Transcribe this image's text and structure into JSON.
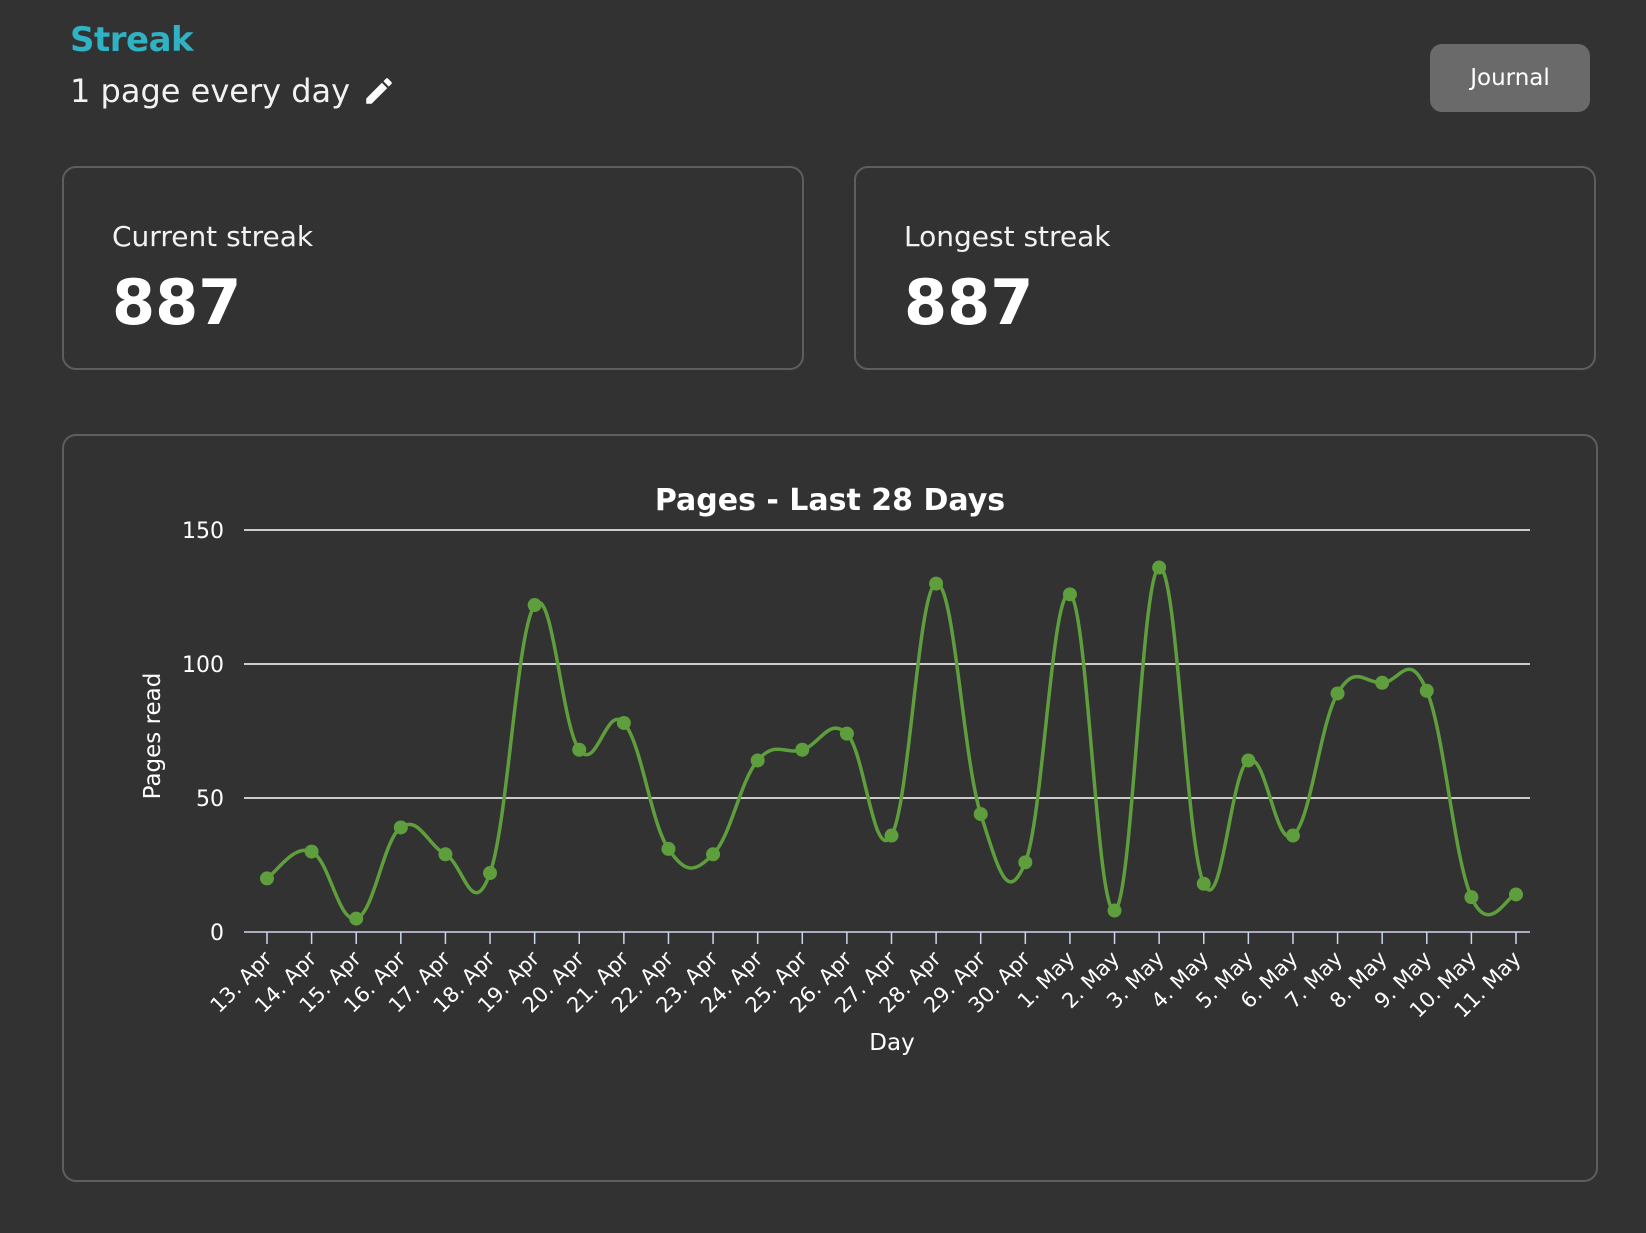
{
  "header": {
    "brand": "Streak",
    "goal_text": "1 page every day",
    "edit_icon": "pencil-icon",
    "journal_label": "Journal"
  },
  "stats": {
    "current": {
      "label": "Current streak",
      "value": "887"
    },
    "longest": {
      "label": "Longest streak",
      "value": "887"
    }
  },
  "colors": {
    "brand": "#2eb2c4",
    "series": "#5e9e3c",
    "background": "#323232",
    "border": "#5e5e5e",
    "button": "#6a6a6a"
  },
  "chart_data": {
    "type": "line",
    "title": "Pages - Last 28 Days",
    "xlabel": "Day",
    "ylabel": "Pages read",
    "ylim": [
      0,
      150
    ],
    "yticks": [
      0,
      50,
      100,
      150
    ],
    "grid": true,
    "smooth": true,
    "categories": [
      "13. Apr",
      "14. Apr",
      "15. Apr",
      "16. Apr",
      "17. Apr",
      "18. Apr",
      "19. Apr",
      "20. Apr",
      "21. Apr",
      "22. Apr",
      "23. Apr",
      "24. Apr",
      "25. Apr",
      "26. Apr",
      "27. Apr",
      "28. Apr",
      "29. Apr",
      "30. Apr",
      "1. May",
      "2. May",
      "3. May",
      "4. May",
      "5. May",
      "6. May",
      "7. May",
      "8. May",
      "9. May",
      "10. May",
      "11. May"
    ],
    "series": [
      {
        "values": [
          20,
          30,
          5,
          39,
          29,
          22,
          122,
          68,
          78,
          31,
          29,
          64,
          68,
          74,
          36,
          130,
          44,
          26,
          126,
          8,
          136,
          18,
          64,
          36,
          89,
          93,
          90,
          13,
          14
        ]
      }
    ]
  }
}
